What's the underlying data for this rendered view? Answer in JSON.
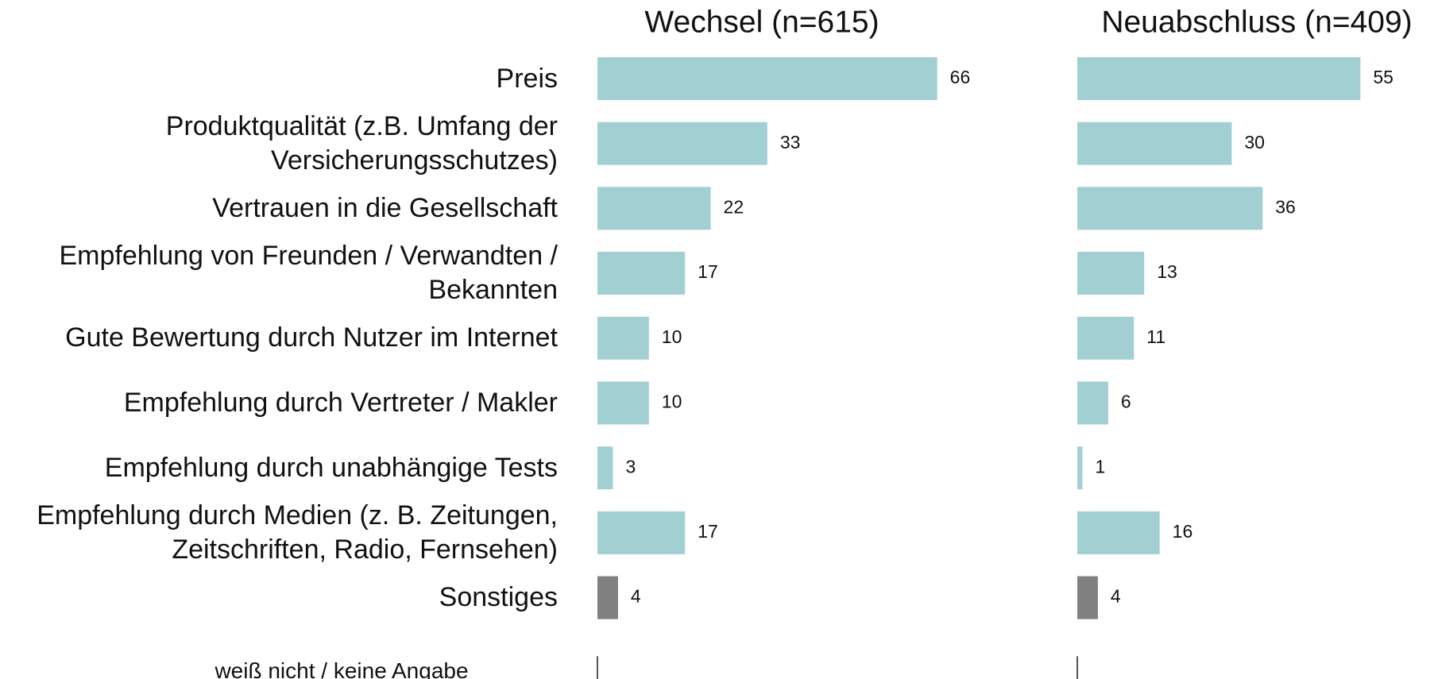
{
  "chart_data": [
    {
      "type": "bar",
      "orientation": "horizontal",
      "title": "Wechsel (n=615)",
      "categories": [
        "Preis",
        "Produktqualität (z.B. Umfang der Versicherungsschutzes)",
        "Vertrauen in die Gesellschaft",
        "Empfehlung von Freunden / Verwandten / Bekannten",
        "Gute Bewertung durch Nutzer im Internet",
        "Empfehlung durch Vertreter / Makler",
        "Empfehlung durch unabhängige Tests",
        "Empfehlung durch Medien (z. B. Zeitungen, Zeitschriften, Radio, Fernsehen)",
        "Sonstiges",
        "weiß nicht / keine Angabe"
      ],
      "values": [
        66,
        33,
        22,
        17,
        10,
        10,
        3,
        17,
        4,
        null
      ],
      "colors": [
        "#a2cfd2",
        "#a2cfd2",
        "#a2cfd2",
        "#a2cfd2",
        "#a2cfd2",
        "#a2cfd2",
        "#a2cfd2",
        "#a2cfd2",
        "#808080",
        "#808080"
      ]
    },
    {
      "type": "bar",
      "orientation": "horizontal",
      "title": "Neuabschluss (n=409)",
      "values": [
        55,
        30,
        36,
        13,
        11,
        6,
        1,
        16,
        4,
        null
      ],
      "colors": [
        "#a2cfd2",
        "#a2cfd2",
        "#a2cfd2",
        "#a2cfd2",
        "#a2cfd2",
        "#a2cfd2",
        "#a2cfd2",
        "#a2cfd2",
        "#808080",
        "#808080"
      ]
    }
  ]
}
